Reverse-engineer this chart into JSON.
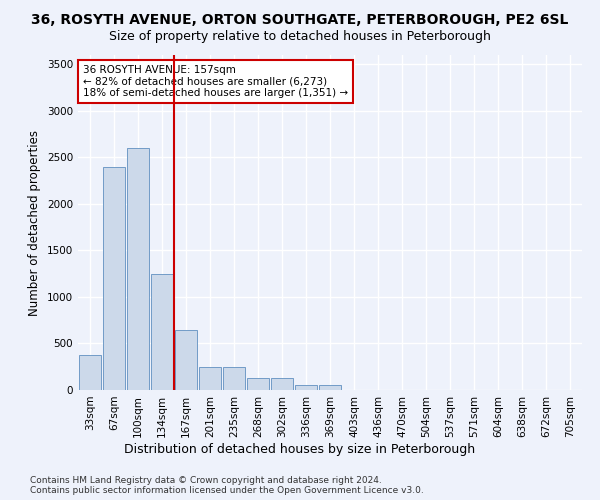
{
  "title_line1": "36, ROSYTH AVENUE, ORTON SOUTHGATE, PETERBOROUGH, PE2 6SL",
  "title_line2": "Size of property relative to detached houses in Peterborough",
  "xlabel": "Distribution of detached houses by size in Peterborough",
  "ylabel": "Number of detached properties",
  "categories": [
    "33sqm",
    "67sqm",
    "100sqm",
    "134sqm",
    "167sqm",
    "201sqm",
    "235sqm",
    "268sqm",
    "302sqm",
    "336sqm",
    "369sqm",
    "403sqm",
    "436sqm",
    "470sqm",
    "504sqm",
    "537sqm",
    "571sqm",
    "604sqm",
    "638sqm",
    "672sqm",
    "705sqm"
  ],
  "values": [
    380,
    2400,
    2600,
    1250,
    650,
    245,
    245,
    130,
    130,
    50,
    50,
    0,
    0,
    0,
    0,
    0,
    0,
    0,
    0,
    0,
    0
  ],
  "bar_color": "#ccd9ea",
  "bar_edge_color": "#6090c0",
  "vline_x": 3.5,
  "vline_color": "#cc0000",
  "annotation_text": "36 ROSYTH AVENUE: 157sqm\n← 82% of detached houses are smaller (6,273)\n18% of semi-detached houses are larger (1,351) →",
  "annotation_box_color": "#ffffff",
  "annotation_box_edge": "#cc0000",
  "ylim": [
    0,
    3600
  ],
  "yticks": [
    0,
    500,
    1000,
    1500,
    2000,
    2500,
    3000,
    3500
  ],
  "footnote": "Contains HM Land Registry data © Crown copyright and database right 2024.\nContains public sector information licensed under the Open Government Licence v3.0.",
  "bg_color": "#eef2fb",
  "plot_bg_color": "#eef2fb",
  "grid_color": "#ffffff",
  "title1_fontsize": 10,
  "title2_fontsize": 9,
  "xlabel_fontsize": 9,
  "ylabel_fontsize": 8.5,
  "tick_fontsize": 7.5,
  "annot_fontsize": 7.5,
  "footnote_fontsize": 6.5
}
